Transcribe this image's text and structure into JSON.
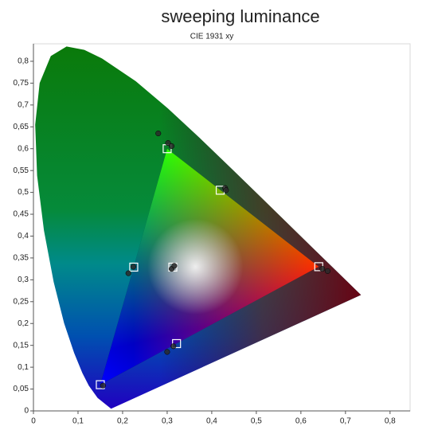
{
  "chart_data": {
    "type": "scatter",
    "title": "sweeping luminance",
    "subtitle": "CIE 1931 xy",
    "xlim": [
      0,
      0.845
    ],
    "ylim": [
      0,
      0.84
    ],
    "xticks": [
      0,
      {
        "value": 0.1,
        "label": "0,1"
      },
      {
        "value": 0.2,
        "label": "0,2"
      },
      {
        "value": 0.3,
        "label": "0,3"
      },
      {
        "value": 0.4,
        "label": "0,4"
      },
      {
        "value": 0.5,
        "label": "0,5"
      },
      {
        "value": 0.6,
        "label": "0,6"
      },
      {
        "value": 0.7,
        "label": "0,7"
      },
      {
        "value": 0.8,
        "label": "0,8"
      }
    ],
    "yticks": [
      0,
      {
        "value": 0.05,
        "label": "0,05"
      },
      {
        "value": 0.1,
        "label": "0,1"
      },
      {
        "value": 0.15,
        "label": "0,15"
      },
      {
        "value": 0.2,
        "label": "0,2"
      },
      {
        "value": 0.25,
        "label": "0,25"
      },
      {
        "value": 0.3,
        "label": "0,3"
      },
      {
        "value": 0.35,
        "label": "0,35"
      },
      {
        "value": 0.4,
        "label": "0,4"
      },
      {
        "value": 0.45,
        "label": "0,45"
      },
      {
        "value": 0.5,
        "label": "0,5"
      },
      {
        "value": 0.55,
        "label": "0,55"
      },
      {
        "value": 0.6,
        "label": "0,6"
      },
      {
        "value": 0.65,
        "label": "0,65"
      },
      {
        "value": 0.7,
        "label": "0,7"
      },
      {
        "value": 0.75,
        "label": "0,75"
      },
      {
        "value": 0.8,
        "label": "0,8"
      }
    ],
    "locus": {
      "x": [
        0.1741,
        0.144,
        0.1241,
        0.1096,
        0.0913,
        0.0687,
        0.0454,
        0.0235,
        0.0082,
        0.0039,
        0.0139,
        0.0389,
        0.0743,
        0.1142,
        0.1547,
        0.2296,
        0.3016,
        0.3731,
        0.4441,
        0.5125,
        0.5752,
        0.627,
        0.6915,
        0.7347
      ],
      "y": [
        0.005,
        0.0297,
        0.0578,
        0.0868,
        0.1327,
        0.2007,
        0.295,
        0.4127,
        0.5384,
        0.6548,
        0.7502,
        0.812,
        0.8338,
        0.8262,
        0.8059,
        0.7543,
        0.6923,
        0.6245,
        0.5547,
        0.4866,
        0.4242,
        0.3725,
        0.3083,
        0.2653
      ]
    },
    "gamut": {
      "x": [
        0.64,
        0.3,
        0.15
      ],
      "y": [
        0.33,
        0.6,
        0.06
      ],
      "colors": [
        "#ff0000",
        "#00ff00",
        "#0000ff"
      ]
    },
    "series": [
      {
        "color": "#ffffff",
        "marker": "square",
        "x": [
          0.64,
          0.3,
          0.15,
          0.225,
          0.321,
          0.419,
          0.3127
        ],
        "y": [
          0.33,
          0.6,
          0.06,
          0.329,
          0.154,
          0.505,
          0.329
        ]
      },
      {
        "color": "#2a2a2a",
        "marker": "circle",
        "x": [
          0.28,
          0.302,
          0.31,
          0.43,
          0.432,
          0.66,
          0.648,
          0.213,
          0.224,
          0.31,
          0.316,
          0.3,
          0.314,
          0.156
        ],
        "y": [
          0.635,
          0.613,
          0.606,
          0.51,
          0.505,
          0.32,
          0.325,
          0.315,
          0.33,
          0.325,
          0.332,
          0.135,
          0.148,
          0.058
        ]
      }
    ]
  }
}
